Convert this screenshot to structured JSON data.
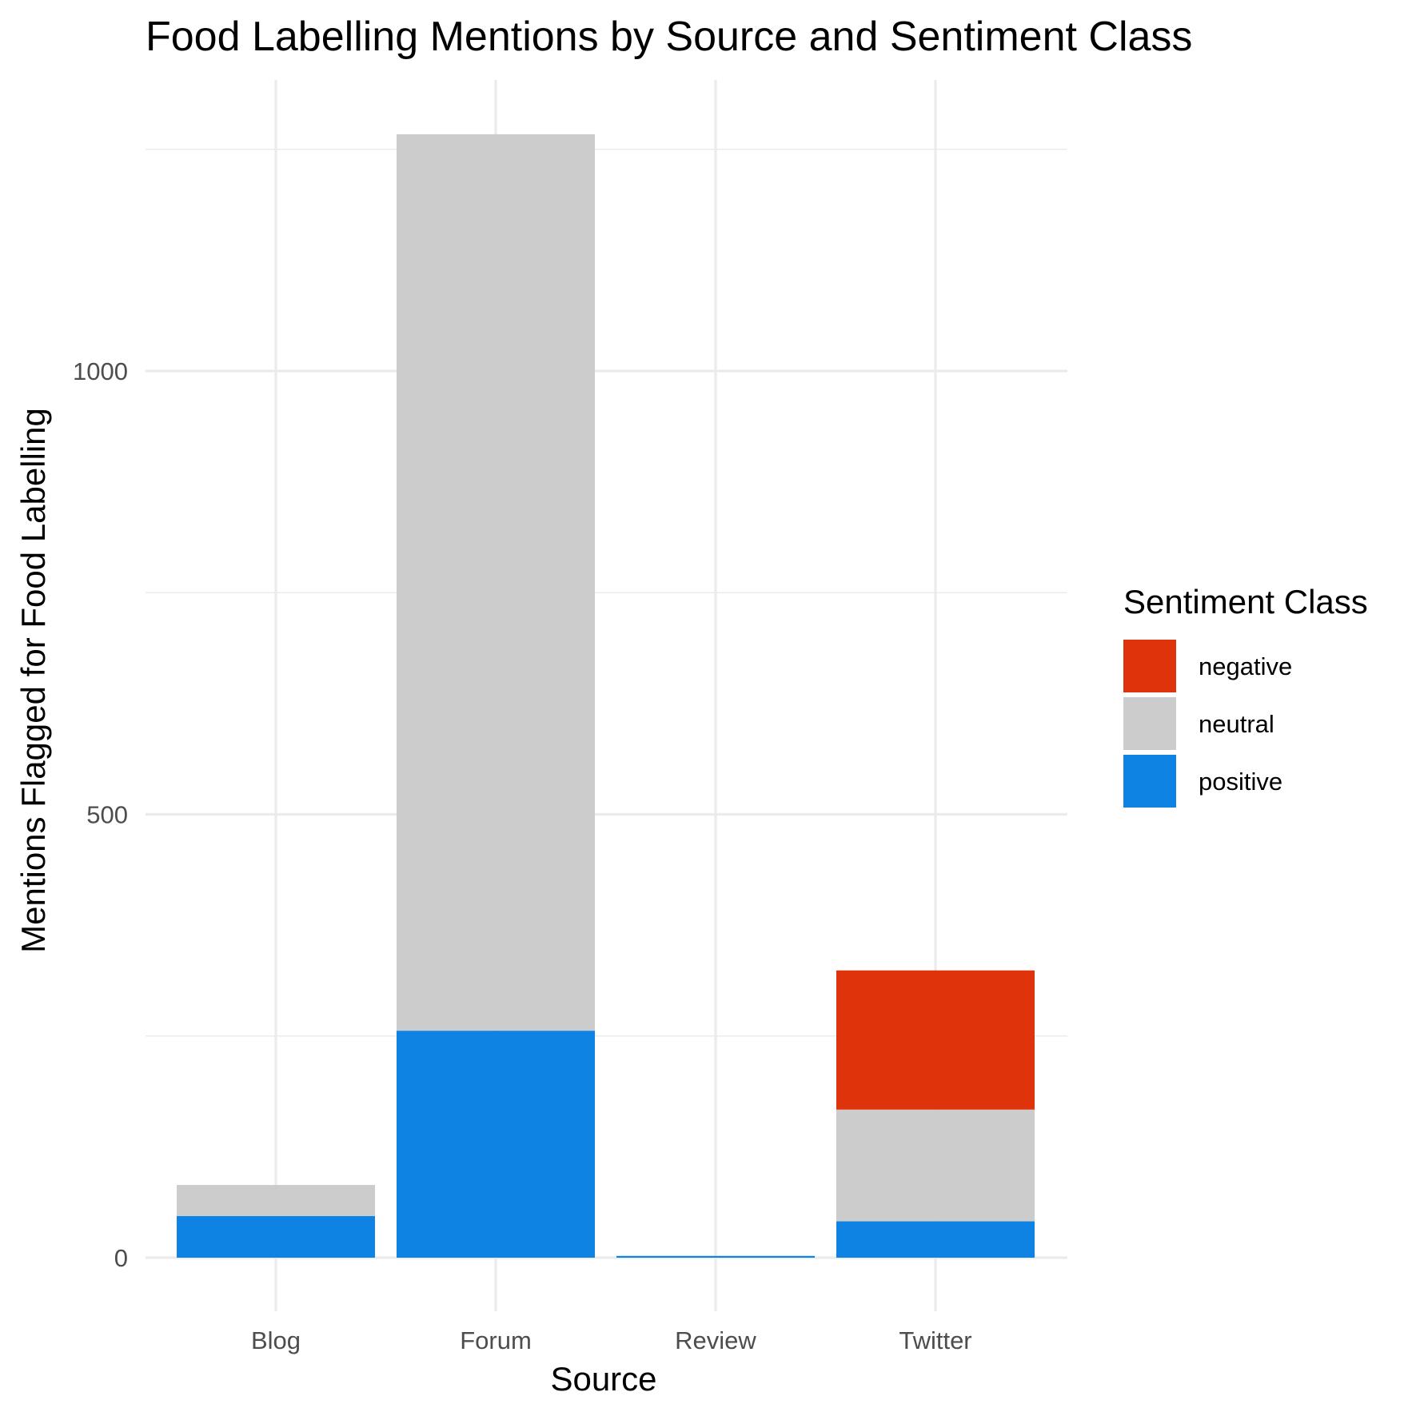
{
  "chart_data": {
    "type": "bar",
    "stacked": true,
    "title": "Food Labelling Mentions by Source and Sentiment Class",
    "xlabel": "Source",
    "ylabel": "Mentions Flagged for Food Labelling",
    "categories": [
      "Blog",
      "Forum",
      "Review",
      "Twitter"
    ],
    "series": [
      {
        "name": "positive",
        "color": "#0f83e4",
        "values": [
          47,
          256,
          2,
          41
        ]
      },
      {
        "name": "neutral",
        "color": "#cccccc",
        "values": [
          35,
          1011,
          0,
          126
        ]
      },
      {
        "name": "negative",
        "color": "#df330c",
        "values": [
          0,
          0,
          0,
          157
        ]
      }
    ],
    "ylim": [
      0,
      1270
    ],
    "y_ticks": [
      0,
      500,
      1000
    ],
    "y_tick_labels": [
      "0",
      "500",
      "1000"
    ],
    "y_minor_ticks": [
      250,
      750,
      1250
    ],
    "grid": true,
    "legend": {
      "title": "Sentiment Class",
      "placement": "right",
      "entries": [
        {
          "name": "negative",
          "color": "#df330c"
        },
        {
          "name": "neutral",
          "color": "#cccccc"
        },
        {
          "name": "positive",
          "color": "#0f83e4"
        }
      ]
    }
  }
}
